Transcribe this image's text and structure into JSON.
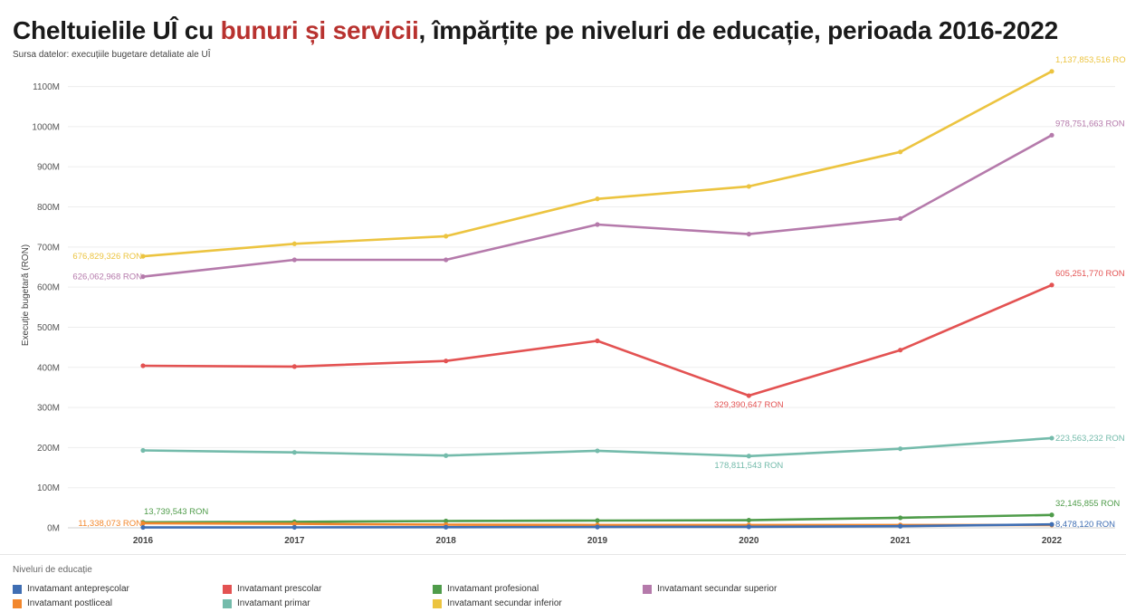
{
  "header": {
    "title_pre": "Cheltuielile UÎ cu ",
    "title_highlight": "bunuri și servicii",
    "title_post": ", împărțite pe niveluri de educație, perioada 2016-2022",
    "subtitle": "Sursa datelor: execuțiile bugetare detaliate ale UÎ"
  },
  "legend": {
    "title": "Niveluri de educație"
  },
  "chart_data": {
    "type": "line",
    "ylabel": "Execuție bugetară (RON)",
    "x": [
      "2016",
      "2017",
      "2018",
      "2019",
      "2020",
      "2021",
      "2022"
    ],
    "ylim": [
      0,
      1160000000
    ],
    "yticks": [
      0,
      100000000,
      200000000,
      300000000,
      400000000,
      500000000,
      600000000,
      700000000,
      800000000,
      900000000,
      1000000000,
      1100000000
    ],
    "ytick_labels": [
      "0M",
      "100M",
      "200M",
      "300M",
      "400M",
      "500M",
      "600M",
      "700M",
      "800M",
      "900M",
      "1000M",
      "1100M"
    ],
    "grid": true,
    "legend_position": "bottom",
    "series": [
      {
        "name": "Invatamant secundar inferior",
        "color": "#ecc440",
        "values": [
          676829326,
          708000000,
          727000000,
          820000000,
          851000000,
          937000000,
          1137853516
        ]
      },
      {
        "name": "Invatamant secundar superior",
        "color": "#b57aab",
        "values": [
          626062968,
          668000000,
          668000000,
          756000000,
          732000000,
          771000000,
          978751663
        ]
      },
      {
        "name": "Invatamant prescolar",
        "color": "#e35252",
        "values": [
          404000000,
          402000000,
          416000000,
          466000000,
          329390647,
          443000000,
          605251770
        ]
      },
      {
        "name": "Invatamant primar",
        "color": "#74bbab",
        "values": [
          193000000,
          188000000,
          180000000,
          192000000,
          178811543,
          197000000,
          223563232
        ]
      },
      {
        "name": "Invatamant profesional",
        "color": "#4f9c4a",
        "values": [
          13739543,
          15000000,
          17000000,
          18000000,
          19000000,
          25000000,
          32145855
        ]
      },
      {
        "name": "Invatamant postliceal",
        "color": "#f2872d",
        "values": [
          11338073,
          10000000,
          8000000,
          7000000,
          7000000,
          7000000,
          7000000
        ]
      },
      {
        "name": "Invatamant antepreșcolar",
        "color": "#3f6eb3",
        "values": [
          1000000,
          1200000,
          1500000,
          2000000,
          2500000,
          4000000,
          8478120
        ]
      }
    ],
    "annotations": [
      {
        "series": 0,
        "index": 0,
        "text": "676,829,326 RON"
      },
      {
        "series": 0,
        "index": 6,
        "text": "1,137,853,516 RON"
      },
      {
        "series": 1,
        "index": 0,
        "text": "626,062,968 RON"
      },
      {
        "series": 1,
        "index": 6,
        "text": "978,751,663 RON"
      },
      {
        "series": 2,
        "index": 4,
        "text": "329,390,647 RON"
      },
      {
        "series": 2,
        "index": 6,
        "text": "605,251,770 RON"
      },
      {
        "series": 3,
        "index": 4,
        "text": "178,811,543 RON"
      },
      {
        "series": 3,
        "index": 6,
        "text": "223,563,232 RON"
      },
      {
        "series": 4,
        "index": 0,
        "text": "13,739,543 RON"
      },
      {
        "series": 4,
        "index": 6,
        "text": "32,145,855 RON"
      },
      {
        "series": 5,
        "index": 0,
        "text": "11,338,073 RON"
      },
      {
        "series": 6,
        "index": 6,
        "text": "8,478,120 RON"
      }
    ]
  },
  "legend_items": [
    {
      "label": "Invatamant antepreșcolar",
      "color": "#3f6eb3"
    },
    {
      "label": "Invatamant prescolar",
      "color": "#e35252"
    },
    {
      "label": "Invatamant profesional",
      "color": "#4f9c4a"
    },
    {
      "label": "Invatamant secundar superior",
      "color": "#b57aab"
    },
    {
      "label": "Invatamant postliceal",
      "color": "#f2872d"
    },
    {
      "label": "Invatamant primar",
      "color": "#74bbab"
    },
    {
      "label": "Invatamant secundar inferior",
      "color": "#ecc440"
    }
  ]
}
